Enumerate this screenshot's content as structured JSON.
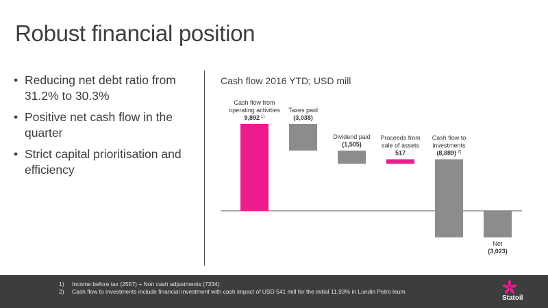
{
  "slide": {
    "title": "Robust financial position",
    "bullets": [
      "Reducing net debt ratio from 31.2% to 30.3%",
      "Positive net cash flow in the quarter",
      "Strict capital prioritisation and efficiency"
    ],
    "bullet_glyph": "•"
  },
  "chart_data": {
    "type": "bar",
    "title": "Cash flow 2016 YTD; USD mill",
    "colors": {
      "inflow": "#ec1c8c",
      "outflow": "#8c8c8c",
      "axis": "#555555"
    },
    "bars": [
      {
        "label_lines": [
          "Cash flow from",
          "operating activities"
        ],
        "value_text": "9,892",
        "superscript": "1)",
        "value": 9892,
        "start": 0,
        "end": 9892,
        "color": "inflow"
      },
      {
        "label_lines": [
          "Taxes paid"
        ],
        "value_text": "(3,038)",
        "superscript": "",
        "value": -3038,
        "start": 9892,
        "end": 6854,
        "color": "outflow"
      },
      {
        "label_lines": [
          "Dividend paid"
        ],
        "value_text": "(1,505)",
        "superscript": "",
        "value": -1505,
        "start": 6854,
        "end": 5349,
        "color": "outflow"
      },
      {
        "label_lines": [
          "Proceeds from",
          "sale of assets"
        ],
        "value_text": "517",
        "superscript": "",
        "value": 517,
        "start": 5349,
        "end": 5866,
        "color": "inflow"
      },
      {
        "label_lines": [
          "Cash flow to",
          "investments"
        ],
        "value_text": "(8,889)",
        "superscript": "2)",
        "value": -8889,
        "start": 5866,
        "end": -3023,
        "color": "outflow"
      },
      {
        "label_lines": [
          "Net"
        ],
        "value_text": "(3,023)",
        "superscript": "",
        "value": -3023,
        "start": 0,
        "end": -3023,
        "color": "outflow"
      }
    ]
  },
  "footnotes": [
    {
      "num": "1)",
      "text": "Income before tax (2557) + Non cash adjustments (7334)"
    },
    {
      "num": "2)",
      "text": "Cash flow to investments include financial investment with cash impact of USD 541 mill for the initial 11.93% in Lundin Petro leum"
    }
  ],
  "logo": {
    "text": "Statoil",
    "icon": "statoil-starfish-icon"
  }
}
